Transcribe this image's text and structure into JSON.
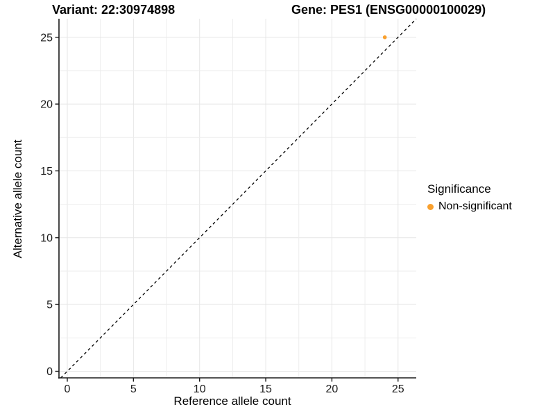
{
  "title": {
    "variant": "Variant: 22:30974898",
    "gene": "Gene: PES1 (ENSG00000100029)"
  },
  "chart_data": {
    "type": "scatter",
    "xlabel": "Reference allele count",
    "ylabel": "Alternative allele count",
    "x_ticks": [
      0,
      5,
      10,
      15,
      20,
      25
    ],
    "y_ticks": [
      0,
      5,
      10,
      15,
      20,
      25
    ],
    "minor_step": 2.5,
    "xlim": [
      -0.6,
      26.4
    ],
    "ylim": [
      -0.5,
      26.4
    ],
    "grid": true,
    "points": [
      {
        "x": 24,
        "y": 25,
        "series": "Non-significant"
      }
    ],
    "reference_line": {
      "type": "identity",
      "style": "dashed",
      "color": "#000000"
    },
    "legend": {
      "title": "Significance",
      "position": "right",
      "entries": [
        {
          "label": "Non-significant",
          "color": "#F9A02E"
        }
      ]
    },
    "colors": {
      "point": "#F9A02E",
      "grid_major": "#E6E6E6",
      "grid_minor": "#EDEDED",
      "axis": "#1A1A1A",
      "tick_text": "#1A1A1A"
    }
  }
}
